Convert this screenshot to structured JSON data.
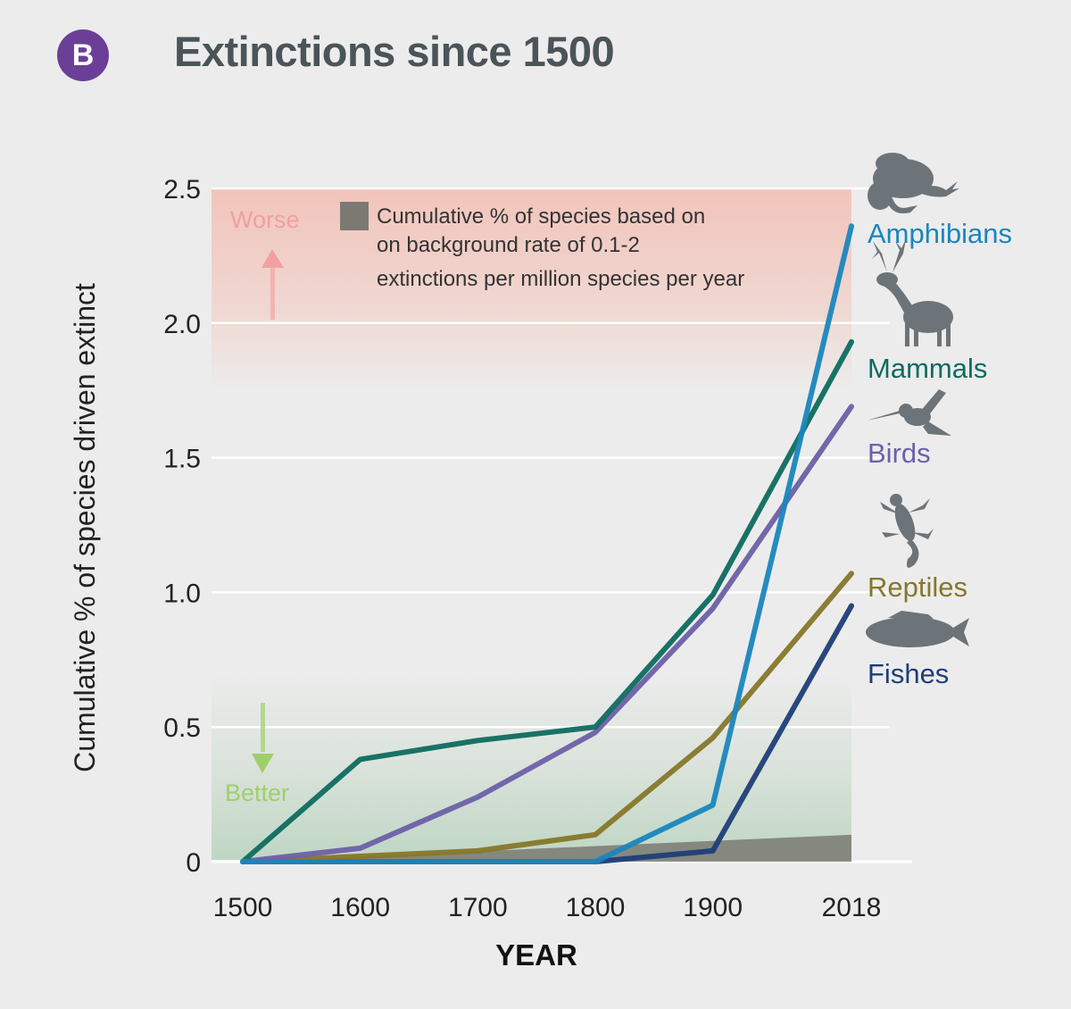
{
  "badge": "B",
  "title": "Extinctions since 1500",
  "chart_data": {
    "type": "line",
    "x": [
      1500,
      1600,
      1700,
      1800,
      1900,
      2018
    ],
    "xlabel": "YEAR",
    "ylabel": "Cumulative % of species driven extinct",
    "xlim": [
      1500,
      2018
    ],
    "ylim": [
      0,
      2.5
    ],
    "x_ticks": [
      "1500",
      "1600",
      "1700",
      "1800",
      "1900",
      "2018"
    ],
    "y_ticks": [
      "0",
      "0.5",
      "1.0",
      "1.5",
      "2.0",
      "2.5"
    ],
    "grid": "horizontal",
    "series": [
      {
        "name": "Amphibians",
        "color": "#1a86bd",
        "icon": "frog-icon",
        "values": [
          0,
          0,
          0,
          0,
          0.21,
          2.36
        ]
      },
      {
        "name": "Mammals",
        "color": "#0e6b5f",
        "icon": "deer-icon",
        "values": [
          0,
          0.38,
          0.45,
          0.5,
          0.99,
          1.93
        ]
      },
      {
        "name": "Birds",
        "color": "#6d60a8",
        "icon": "hummingbird-icon",
        "values": [
          0,
          0.05,
          0.24,
          0.48,
          0.94,
          1.69
        ]
      },
      {
        "name": "Reptiles",
        "color": "#86772a",
        "icon": "gecko-icon",
        "values": [
          0,
          0.02,
          0.04,
          0.1,
          0.46,
          1.07
        ]
      },
      {
        "name": "Fishes",
        "color": "#1d3e78",
        "icon": "fish-icon",
        "values": [
          0,
          0,
          0,
          0,
          0.04,
          0.95
        ]
      }
    ],
    "background_rate": {
      "label": [
        "Cumulative % of species based on",
        "on background rate of 0.1-2",
        "extinctions per million species per year"
      ],
      "values": [
        0,
        0.1
      ],
      "color": "#7a7a72"
    },
    "annotations": {
      "worse": "Worse",
      "better": "Better",
      "worse_color": "#f0a0a0",
      "better_color": "#9fcf6c"
    }
  }
}
